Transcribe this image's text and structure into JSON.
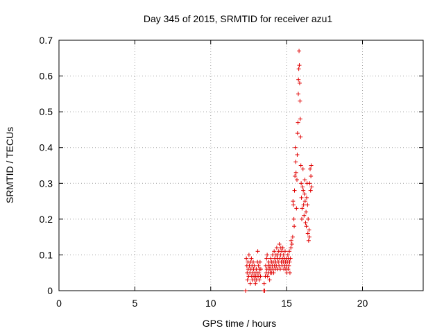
{
  "chart_data": {
    "type": "scatter",
    "title": "Day 345 of 2015, SRMTID for receiver azu1",
    "xlabel": "GPS time / hours",
    "ylabel": "SRMTID / TECUs",
    "xlim": [
      0,
      24
    ],
    "ylim": [
      0,
      0.7
    ],
    "xticks": [
      0,
      5,
      10,
      15,
      20
    ],
    "yticks": [
      0,
      0.1,
      0.2,
      0.3,
      0.4,
      0.5,
      0.6,
      0.7
    ],
    "xtick_labels": [
      "0",
      "5",
      "10",
      "15",
      "20"
    ],
    "ytick_labels": [
      "0",
      "0.1",
      "0.2",
      "0.3",
      "0.4",
      "0.5",
      "0.6",
      "0.7"
    ],
    "grid": true,
    "marker": "+",
    "marker_color": "#e00000",
    "series": [
      {
        "name": "azu1",
        "points": [
          [
            12.3,
            0.0
          ],
          [
            12.35,
            0.09
          ],
          [
            12.38,
            0.07
          ],
          [
            12.4,
            0.05
          ],
          [
            12.42,
            0.03
          ],
          [
            12.45,
            0.08
          ],
          [
            12.47,
            0.06
          ],
          [
            12.5,
            0.04
          ],
          [
            12.52,
            0.1
          ],
          [
            12.55,
            0.07
          ],
          [
            12.58,
            0.05
          ],
          [
            12.6,
            0.02
          ],
          [
            12.62,
            0.08
          ],
          [
            12.65,
            0.06
          ],
          [
            12.68,
            0.09
          ],
          [
            12.7,
            0.04
          ],
          [
            12.72,
            0.07
          ],
          [
            12.75,
            0.03
          ],
          [
            12.78,
            0.05
          ],
          [
            12.8,
            0.08
          ],
          [
            12.82,
            0.06
          ],
          [
            12.85,
            0.04
          ],
          [
            12.88,
            0.07
          ],
          [
            12.9,
            0.03
          ],
          [
            12.92,
            0.05
          ],
          [
            12.95,
            0.02
          ],
          [
            12.97,
            0.04
          ],
          [
            13.0,
            0.06
          ],
          [
            13.02,
            0.03
          ],
          [
            13.05,
            0.05
          ],
          [
            13.08,
            0.08
          ],
          [
            13.1,
            0.11
          ],
          [
            13.12,
            0.04
          ],
          [
            13.15,
            0.07
          ],
          [
            13.18,
            0.05
          ],
          [
            13.2,
            0.03
          ],
          [
            13.22,
            0.06
          ],
          [
            13.25,
            0.08
          ],
          [
            13.28,
            0.04
          ],
          [
            13.3,
            0.06
          ],
          [
            13.5,
            0.0
          ],
          [
            13.52,
            0.02
          ],
          [
            13.55,
            0.0
          ],
          [
            13.6,
            0.04
          ],
          [
            13.62,
            0.07
          ],
          [
            13.65,
            0.05
          ],
          [
            13.68,
            0.09
          ],
          [
            13.7,
            0.06
          ],
          [
            13.72,
            0.1
          ],
          [
            13.75,
            0.04
          ],
          [
            13.78,
            0.07
          ],
          [
            13.8,
            0.05
          ],
          [
            13.82,
            0.08
          ],
          [
            13.85,
            0.06
          ],
          [
            13.88,
            0.03
          ],
          [
            13.9,
            0.07
          ],
          [
            13.92,
            0.05
          ],
          [
            13.95,
            0.09
          ],
          [
            13.97,
            0.06
          ],
          [
            14.0,
            0.08
          ],
          [
            14.02,
            0.05
          ],
          [
            14.05,
            0.07
          ],
          [
            14.08,
            0.1
          ],
          [
            14.1,
            0.06
          ],
          [
            14.12,
            0.08
          ],
          [
            14.15,
            0.05
          ],
          [
            14.18,
            0.11
          ],
          [
            14.2,
            0.07
          ],
          [
            14.22,
            0.09
          ],
          [
            14.25,
            0.06
          ],
          [
            14.28,
            0.08
          ],
          [
            14.3,
            0.1
          ],
          [
            14.32,
            0.07
          ],
          [
            14.35,
            0.12
          ],
          [
            14.38,
            0.09
          ],
          [
            14.4,
            0.06
          ],
          [
            14.42,
            0.1
          ],
          [
            14.45,
            0.08
          ],
          [
            14.48,
            0.11
          ],
          [
            14.5,
            0.07
          ],
          [
            14.52,
            0.13
          ],
          [
            14.55,
            0.09
          ],
          [
            14.58,
            0.06
          ],
          [
            14.6,
            0.1
          ],
          [
            14.62,
            0.12
          ],
          [
            14.65,
            0.08
          ],
          [
            14.68,
            0.11
          ],
          [
            14.7,
            0.07
          ],
          [
            14.72,
            0.09
          ],
          [
            14.75,
            0.12
          ],
          [
            14.78,
            0.08
          ],
          [
            14.8,
            0.1
          ],
          [
            14.82,
            0.06
          ],
          [
            14.85,
            0.09
          ],
          [
            14.88,
            0.07
          ],
          [
            14.9,
            0.11
          ],
          [
            14.92,
            0.08
          ],
          [
            14.95,
            0.06
          ],
          [
            14.97,
            0.09
          ],
          [
            15.0,
            0.07
          ],
          [
            15.02,
            0.05
          ],
          [
            15.05,
            0.08
          ],
          [
            15.08,
            0.1
          ],
          [
            15.1,
            0.06
          ],
          [
            15.12,
            0.09
          ],
          [
            15.15,
            0.07
          ],
          [
            15.18,
            0.11
          ],
          [
            15.2,
            0.08
          ],
          [
            15.22,
            0.05
          ],
          [
            15.25,
            0.09
          ],
          [
            15.28,
            0.12
          ],
          [
            15.3,
            0.14
          ],
          [
            15.35,
            0.13
          ],
          [
            15.4,
            0.15
          ],
          [
            15.42,
            0.25
          ],
          [
            15.45,
            0.24
          ],
          [
            15.48,
            0.2
          ],
          [
            15.5,
            0.18
          ],
          [
            15.52,
            0.28
          ],
          [
            15.55,
            0.32
          ],
          [
            15.57,
            0.4
          ],
          [
            15.6,
            0.36
          ],
          [
            15.62,
            0.33
          ],
          [
            15.65,
            0.23
          ],
          [
            15.68,
            0.31
          ],
          [
            15.7,
            0.38
          ],
          [
            15.72,
            0.44
          ],
          [
            15.75,
            0.47
          ],
          [
            15.77,
            0.55
          ],
          [
            15.78,
            0.59
          ],
          [
            15.8,
            0.62
          ],
          [
            15.82,
            0.67
          ],
          [
            15.84,
            0.63
          ],
          [
            15.86,
            0.58
          ],
          [
            15.88,
            0.53
          ],
          [
            15.9,
            0.48
          ],
          [
            15.92,
            0.43
          ],
          [
            15.94,
            0.35
          ],
          [
            15.96,
            0.3
          ],
          [
            15.98,
            0.26
          ],
          [
            16.0,
            0.2
          ],
          [
            16.02,
            0.23
          ],
          [
            16.05,
            0.29
          ],
          [
            16.08,
            0.34
          ],
          [
            16.1,
            0.28
          ],
          [
            16.12,
            0.24
          ],
          [
            16.15,
            0.21
          ],
          [
            16.18,
            0.27
          ],
          [
            16.2,
            0.31
          ],
          [
            16.22,
            0.25
          ],
          [
            16.25,
            0.19
          ],
          [
            16.28,
            0.22
          ],
          [
            16.3,
            0.18
          ],
          [
            16.32,
            0.26
          ],
          [
            16.35,
            0.3
          ],
          [
            16.38,
            0.24
          ],
          [
            16.4,
            0.16
          ],
          [
            16.42,
            0.2
          ],
          [
            16.45,
            0.14
          ],
          [
            16.48,
            0.17
          ],
          [
            16.5,
            0.15
          ],
          [
            16.52,
            0.3
          ],
          [
            16.55,
            0.34
          ],
          [
            16.58,
            0.28
          ],
          [
            16.6,
            0.32
          ],
          [
            16.62,
            0.35
          ],
          [
            16.65,
            0.29
          ]
        ]
      }
    ]
  }
}
